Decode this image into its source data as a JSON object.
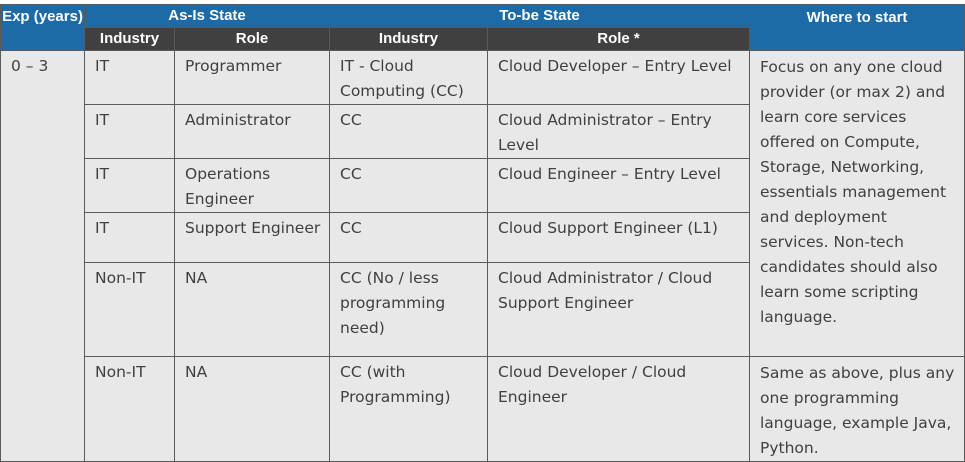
{
  "headers": {
    "exp": "Exp (years)",
    "as_is": "As-Is State",
    "to_be": "To-be State",
    "where": "Where to start",
    "industry": "Industry",
    "role": "Role",
    "to_be_industry": "Industry",
    "to_be_role": "Role *"
  },
  "exp_value": "0 – 3",
  "rows": [
    {
      "industry": "IT",
      "role": "Programmer",
      "tb_industry": "IT - Cloud Computing (CC)",
      "tb_role": "Cloud Developer – Entry Level"
    },
    {
      "industry": "IT",
      "role": "Administrator",
      "tb_industry": "CC",
      "tb_role": "Cloud Administrator – Entry Level"
    },
    {
      "industry": "IT",
      "role": "Operations Engineer",
      "tb_industry": "CC",
      "tb_role": "Cloud Engineer – Entry Level"
    },
    {
      "industry": "IT",
      "role": "Support Engineer",
      "tb_industry": "CC",
      "tb_role": "Cloud Support Engineer (L1)"
    },
    {
      "industry": "Non-IT",
      "role": "NA",
      "tb_industry": "CC (No / less programming need)",
      "tb_role": "Cloud Administrator / Cloud Support Engineer"
    },
    {
      "industry": "Non-IT",
      "role": "NA",
      "tb_industry": "CC (with Programming)",
      "tb_role": "Cloud Developer / Cloud Engineer"
    }
  ],
  "where_1": "Focus on any one cloud provider (or max 2) and learn core services offered on Compute, Storage, Networking, essentials management and deployment services. Non-tech candidates should also learn some scripting language.",
  "where_2": "Same as above, plus any one programming language, example Java, Python."
}
